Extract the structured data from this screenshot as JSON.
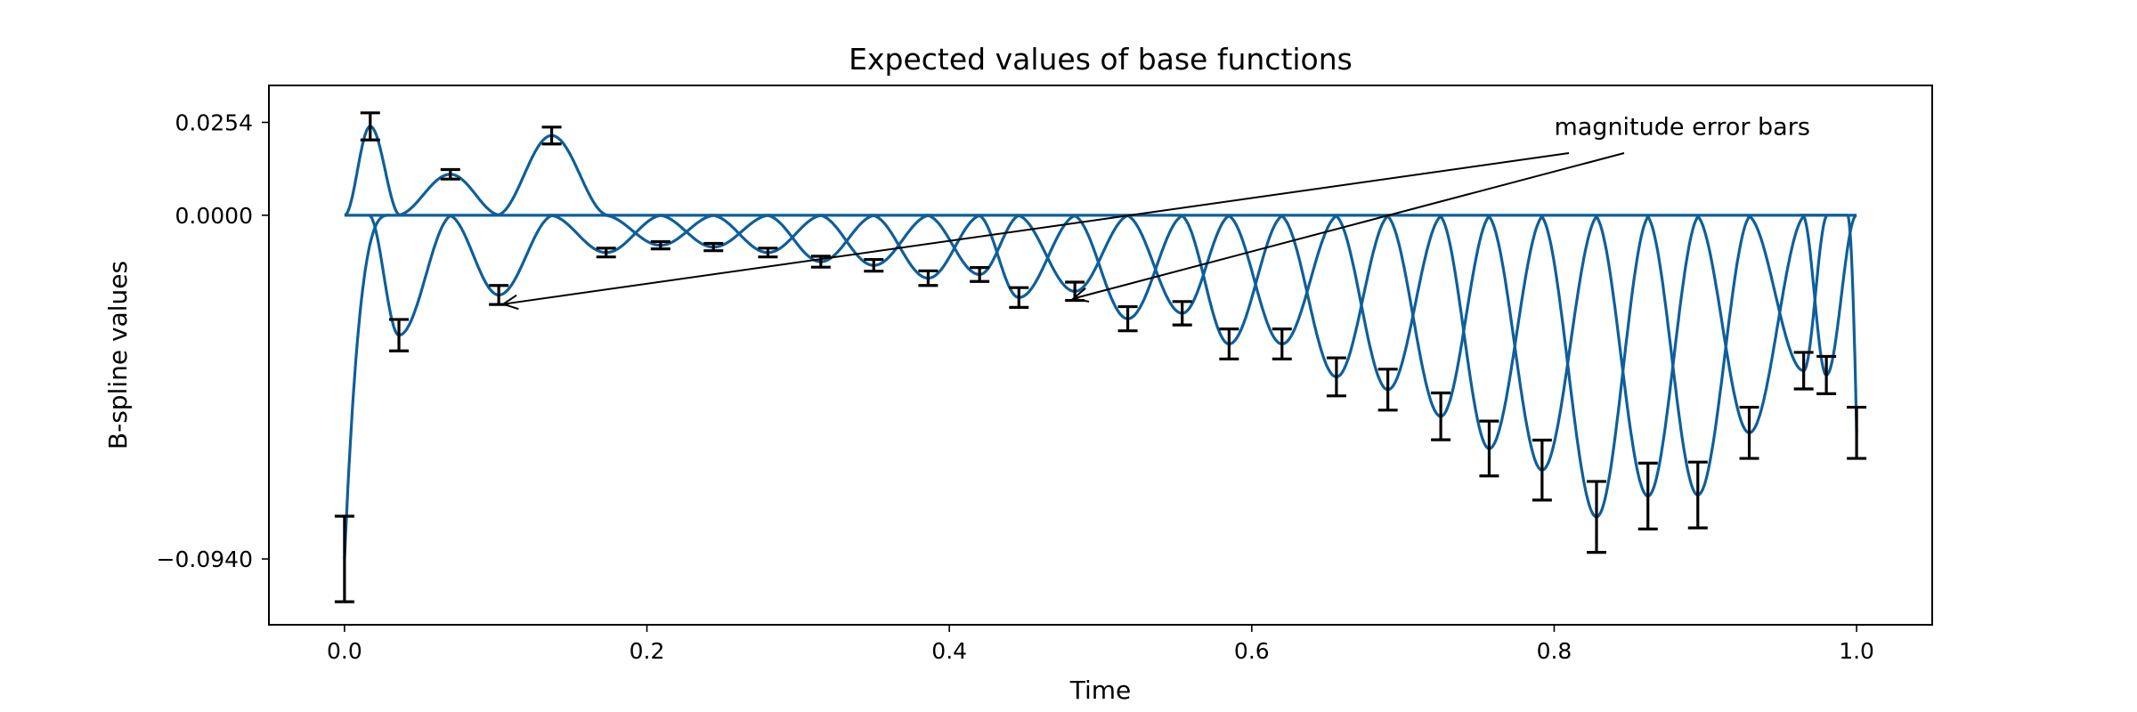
{
  "chart_data": {
    "type": "line",
    "title": "Expected values of base functions",
    "xlabel": "Time",
    "ylabel": "B-spline values",
    "xlim": [
      -0.05,
      1.05
    ],
    "ylim": [
      -0.112,
      0.0355
    ],
    "xticks": [
      0.0,
      0.2,
      0.4,
      0.6,
      0.8,
      1.0
    ],
    "xtick_labels": [
      "0.0",
      "0.2",
      "0.4",
      "0.6",
      "0.8",
      "1.0"
    ],
    "yticks": [
      -0.094,
      0.0,
      0.0254
    ],
    "ytick_labels": [
      "−0.0940",
      "0.0000",
      "0.0254"
    ],
    "grid": false,
    "line_color": "#0e5f9a",
    "errorbar_color": "#000000",
    "basis_functions": [
      {
        "peak_x": 0.0,
        "peak_y": -0.094,
        "err": 0.0117
      },
      {
        "peak_x": 0.017,
        "peak_y": 0.0243,
        "err": 0.0037
      },
      {
        "peak_x": 0.036,
        "peak_y": -0.0328,
        "err": 0.0043
      },
      {
        "peak_x": 0.07,
        "peak_y": 0.0112,
        "err": 0.0013
      },
      {
        "peak_x": 0.102,
        "peak_y": -0.0218,
        "err": 0.0026
      },
      {
        "peak_x": 0.137,
        "peak_y": 0.0218,
        "err": 0.0023
      },
      {
        "peak_x": 0.173,
        "peak_y": -0.0102,
        "err": 0.0012
      },
      {
        "peak_x": 0.209,
        "peak_y": -0.0082,
        "err": 0.001
      },
      {
        "peak_x": 0.244,
        "peak_y": -0.0087,
        "err": 0.001
      },
      {
        "peak_x": 0.28,
        "peak_y": -0.0102,
        "err": 0.0012
      },
      {
        "peak_x": 0.315,
        "peak_y": -0.0127,
        "err": 0.0015
      },
      {
        "peak_x": 0.35,
        "peak_y": -0.0137,
        "err": 0.0016
      },
      {
        "peak_x": 0.386,
        "peak_y": -0.0172,
        "err": 0.002
      },
      {
        "peak_x": 0.42,
        "peak_y": -0.0162,
        "err": 0.0019
      },
      {
        "peak_x": 0.446,
        "peak_y": -0.0225,
        "err": 0.0027
      },
      {
        "peak_x": 0.483,
        "peak_y": -0.0208,
        "err": 0.0025
      },
      {
        "peak_x": 0.518,
        "peak_y": -0.0283,
        "err": 0.0033
      },
      {
        "peak_x": 0.554,
        "peak_y": -0.0268,
        "err": 0.0032
      },
      {
        "peak_x": 0.585,
        "peak_y": -0.0352,
        "err": 0.0041
      },
      {
        "peak_x": 0.62,
        "peak_y": -0.0352,
        "err": 0.0041
      },
      {
        "peak_x": 0.656,
        "peak_y": -0.0442,
        "err": 0.0052
      },
      {
        "peak_x": 0.69,
        "peak_y": -0.0477,
        "err": 0.0056
      },
      {
        "peak_x": 0.725,
        "peak_y": -0.055,
        "err": 0.0064
      },
      {
        "peak_x": 0.757,
        "peak_y": -0.0638,
        "err": 0.0075
      },
      {
        "peak_x": 0.792,
        "peak_y": -0.0697,
        "err": 0.0082
      },
      {
        "peak_x": 0.828,
        "peak_y": -0.0825,
        "err": 0.0097
      },
      {
        "peak_x": 0.862,
        "peak_y": -0.0768,
        "err": 0.009
      },
      {
        "peak_x": 0.895,
        "peak_y": -0.0765,
        "err": 0.009
      },
      {
        "peak_x": 0.929,
        "peak_y": -0.0595,
        "err": 0.007
      },
      {
        "peak_x": 0.965,
        "peak_y": -0.0425,
        "err": 0.005
      },
      {
        "peak_x": 0.98,
        "peak_y": -0.0437,
        "err": 0.0051
      },
      {
        "peak_x": 1.0,
        "peak_y": -0.0595,
        "err": 0.007
      }
    ],
    "annotations": [
      {
        "text": "magnitude error bars",
        "xy_text": [
          0.8,
          0.022
        ],
        "arrow_targets": [
          [
            0.105,
            -0.0243
          ],
          [
            0.482,
            -0.0228
          ]
        ]
      }
    ]
  }
}
